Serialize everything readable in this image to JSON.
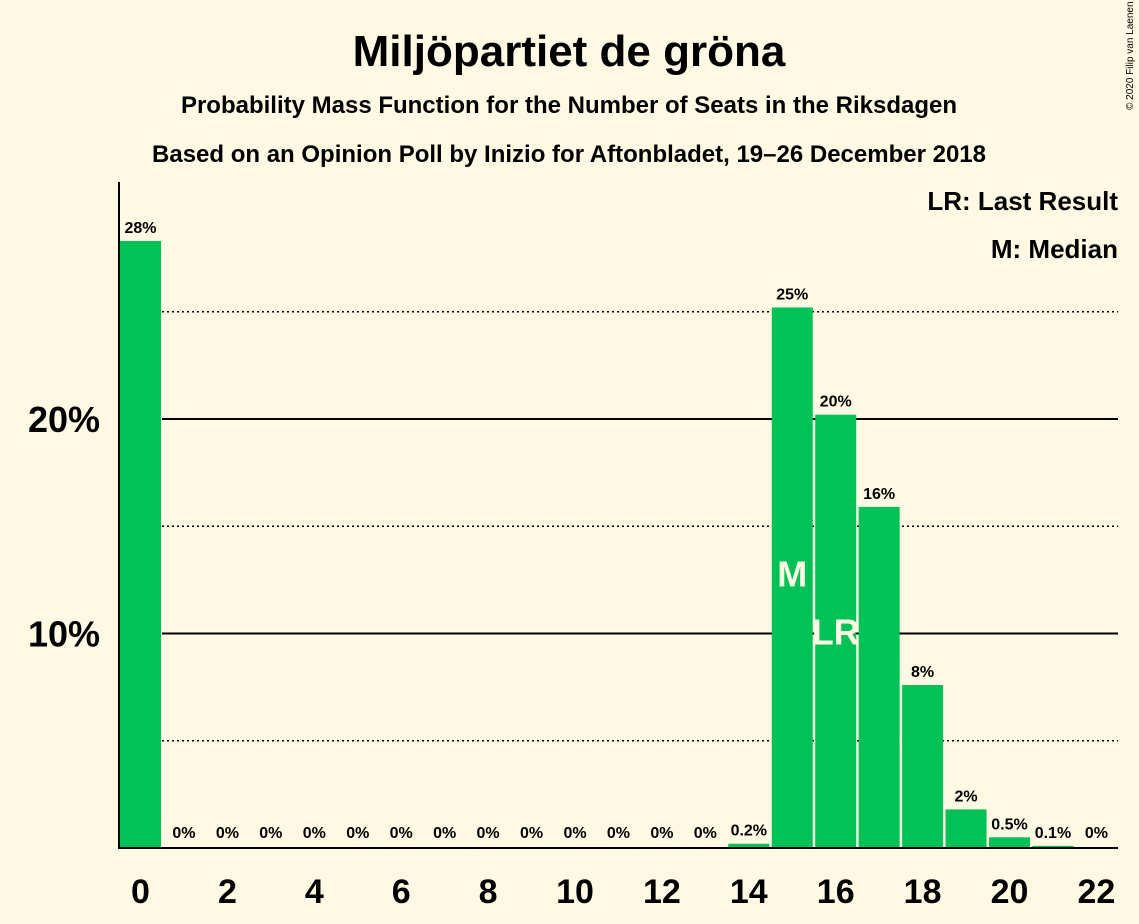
{
  "title": "Miljöpartiet de gröna",
  "subtitle1": "Probability Mass Function for the Number of Seats in the Riksdagen",
  "subtitle2": "Based on an Opinion Poll by Inizio for Aftonbladet, 19–26 December 2018",
  "legend_lr": "LR: Last Result",
  "legend_m": "M: Median",
  "copyright": "© 2020 Filip van Laenen",
  "colors": {
    "bar": "#00C256",
    "background": "#FFF9E3"
  },
  "chart_data": {
    "type": "bar",
    "title": "Miljöpartiet de gröna",
    "xlabel": "",
    "ylabel": "",
    "ylim": [
      0,
      30
    ],
    "y_ticks": [
      {
        "value": 10,
        "label": "10%"
      },
      {
        "value": 20,
        "label": "20%"
      }
    ],
    "x_tick_labels": [
      "0",
      "2",
      "4",
      "6",
      "8",
      "10",
      "12",
      "14",
      "16",
      "18",
      "20",
      "22"
    ],
    "grid": "solid lines at 10% and 20%, dotted lines at 5%, 15% and 25%",
    "legend_position": "top-right",
    "seats": [
      0,
      1,
      2,
      3,
      4,
      5,
      6,
      7,
      8,
      9,
      10,
      11,
      12,
      13,
      14,
      15,
      16,
      17,
      18,
      19,
      20,
      21,
      22
    ],
    "values": [
      28.3,
      0,
      0,
      0,
      0,
      0,
      0,
      0,
      0,
      0,
      0,
      0,
      0,
      0,
      0.2,
      25.2,
      20.2,
      15.9,
      7.6,
      1.8,
      0.5,
      0.1,
      0
    ],
    "labels": [
      "28%",
      "0%",
      "0%",
      "0%",
      "0%",
      "0%",
      "0%",
      "0%",
      "0%",
      "0%",
      "0%",
      "0%",
      "0%",
      "0%",
      "0.2%",
      "25%",
      "20%",
      "16%",
      "8%",
      "2%",
      "0.5%",
      "0.1%",
      "0%"
    ],
    "median_seat": 15,
    "median_marker": "M",
    "last_result_seat": 16,
    "last_result_marker": "LR"
  }
}
